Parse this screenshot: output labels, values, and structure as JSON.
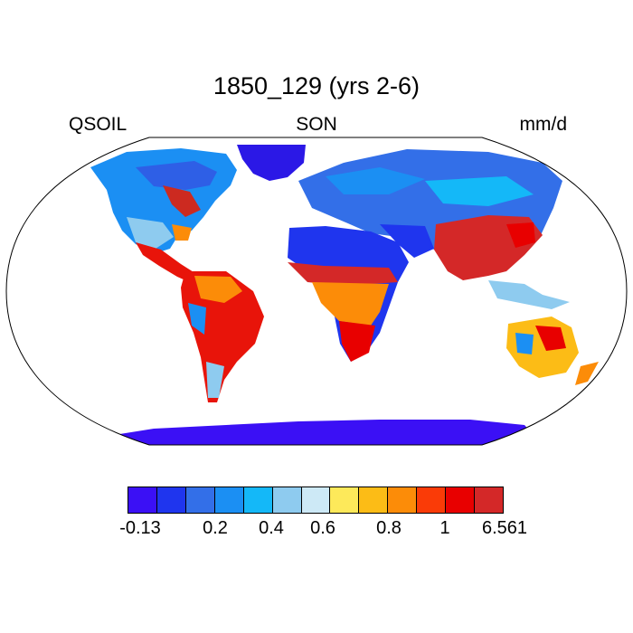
{
  "header": {
    "title": "1850_129 (yrs 2-6)",
    "left_label": "QSOIL",
    "center_label": "SON",
    "right_label": "mm/d"
  },
  "colorbar": {
    "colors": [
      "#3b10f5",
      "#1f35ee",
      "#336fe8",
      "#1b8ff3",
      "#14b8f8",
      "#8ecbef",
      "#cde9f6",
      "#fde95a",
      "#fcbc16",
      "#fc8c08",
      "#fa3b07",
      "#e80000",
      "#d42828"
    ],
    "tick_labels": [
      "-0.13",
      "",
      "0.2",
      "0.4",
      "0.6",
      "0.8",
      "1",
      "6.561"
    ]
  }
}
